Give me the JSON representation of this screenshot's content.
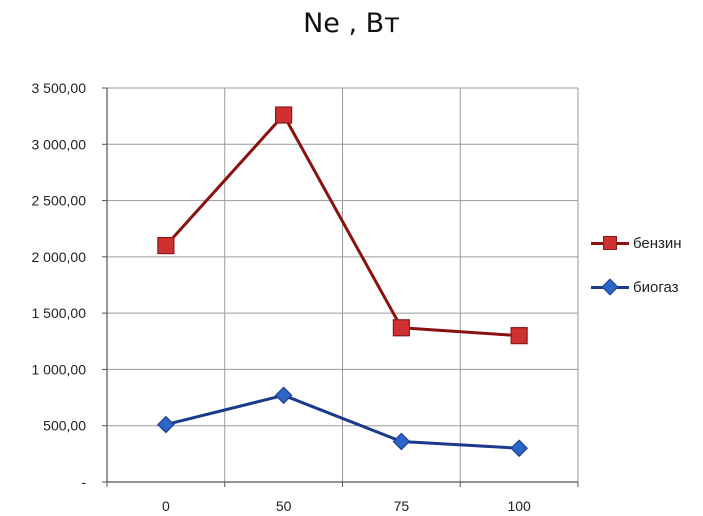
{
  "chart_data": {
    "type": "line",
    "title": "Ne , Вт",
    "categories": [
      "0",
      "50",
      "75",
      "100"
    ],
    "ylim": [
      0,
      3500
    ],
    "yticks": [
      {
        "value": 0,
        "label": "-"
      },
      {
        "value": 500,
        "label": "500,00"
      },
      {
        "value": 1000,
        "label": "1 000,00"
      },
      {
        "value": 1500,
        "label": "1 500,00"
      },
      {
        "value": 2000,
        "label": "2 000,00"
      },
      {
        "value": 2500,
        "label": "2 500,00"
      },
      {
        "value": 3000,
        "label": "3 000,00"
      },
      {
        "value": 3500,
        "label": "3 500,00"
      }
    ],
    "grid": true,
    "legend_position": "right",
    "series": [
      {
        "name": "бензин",
        "values": [
          2100,
          3260,
          1370,
          1300
        ],
        "color": "#b01e1e",
        "line_color": "#8b1010",
        "marker": "square"
      },
      {
        "name": "биогаз",
        "values": [
          510,
          770,
          360,
          300
        ],
        "color": "#2a66c8",
        "line_color": "#1a3a8a",
        "marker": "diamond"
      }
    ]
  }
}
